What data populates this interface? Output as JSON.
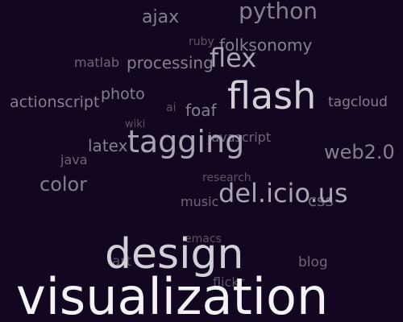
{
  "cloud": {
    "background_color": "#130620",
    "tags": {
      "ajax": "ajax",
      "python": "python",
      "ruby": "ruby",
      "folksonomy": "folksonomy",
      "matlab": "matlab",
      "processing": "processing",
      "flex": "flex",
      "photo": "photo",
      "flash": "flash",
      "actionscript": "actionscript",
      "ai": "ai",
      "foaf": "foaf",
      "tagcloud": "tagcloud",
      "wiki": "wiki",
      "javascript": "javascript",
      "latex": "latex",
      "tagging": "tagging",
      "web20": "web2.0",
      "java": "java",
      "research": "research",
      "color": "color",
      "delicious": "del.icio.us",
      "css": "css",
      "music": "music",
      "emacs": "emacs",
      "design": "design",
      "blog": "blog",
      "art": "art",
      "flickr": "flickr",
      "visualization": "visualization"
    }
  }
}
